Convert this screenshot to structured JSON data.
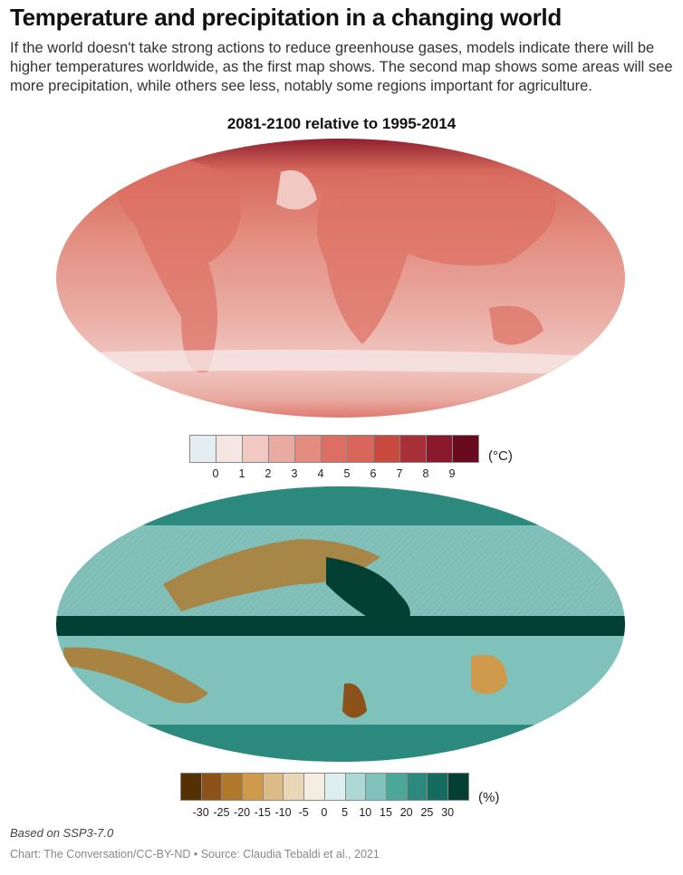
{
  "header": {
    "title": "Temperature and precipitation in a changing world",
    "subtitle": "If the world doesn't take strong actions to reduce greenhouse gases, models indicate there will be higher temperatures worldwide, as the first map shows. The second map shows some areas will see more precipitation, while others see less, notably some regions important for agriculture."
  },
  "map_title": "2081-2100 relative to 1995-2014",
  "temperature_legend": {
    "unit": "(°C)",
    "ticks": [
      "0",
      "1",
      "2",
      "3",
      "4",
      "5",
      "6",
      "7",
      "8",
      "9"
    ],
    "colors": [
      "#e4eef2",
      "#f6e6e3",
      "#f1c8c2",
      "#e9aaa1",
      "#e38d80",
      "#dd6f62",
      "#d9665a",
      "#c8493e",
      "#a73038",
      "#8a1a2b",
      "#6a0a1e"
    ]
  },
  "precipitation_legend": {
    "unit": "(%)",
    "ticks": [
      "-30",
      "-25",
      "-20",
      "-15",
      "-10",
      "-5",
      "0",
      "5",
      "10",
      "15",
      "20",
      "25",
      "30"
    ],
    "colors": [
      "#543005",
      "#8c5219",
      "#b0782b",
      "#cf9a4b",
      "#ddbb86",
      "#ead7b8",
      "#f3ece1",
      "#ddeeee",
      "#acd9d6",
      "#7fc2bb",
      "#4aa79a",
      "#2b8a7d",
      "#156b5d",
      "#033f33"
    ]
  },
  "footer": {
    "note": "Based on SSP3-7.0",
    "credit": "Chart: The Conversation/CC-BY-ND • Source: Claudia Tebaldi et al., 2021"
  }
}
